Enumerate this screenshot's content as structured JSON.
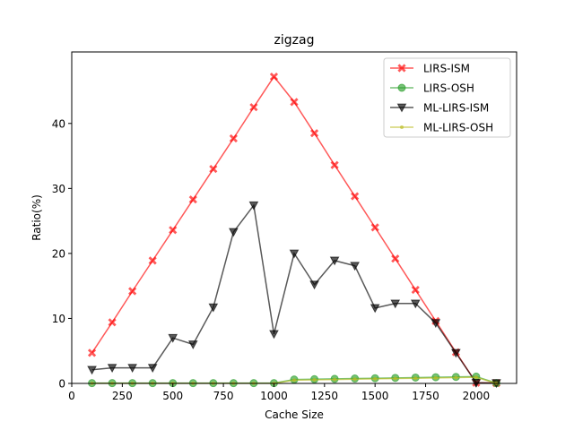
{
  "chart_data": {
    "type": "line",
    "title": "zigzag",
    "xlabel": "Cache Size",
    "ylabel": "Ratio(%)",
    "xlim": [
      0,
      2200
    ],
    "ylim": [
      0,
      51
    ],
    "xticks": [
      0,
      250,
      500,
      750,
      1000,
      1250,
      1500,
      1750,
      2000
    ],
    "yticks": [
      0,
      10,
      20,
      30,
      40
    ],
    "x": [
      100,
      200,
      300,
      400,
      500,
      600,
      700,
      800,
      900,
      1000,
      1100,
      1200,
      1300,
      1400,
      1500,
      1600,
      1700,
      1800,
      1900,
      2000,
      2100
    ],
    "legend_position": "top-right",
    "series": [
      {
        "name": "LIRS-ISM",
        "color": "#ff0000",
        "marker": "x",
        "values": [
          4.7,
          9.4,
          14.2,
          18.9,
          23.6,
          28.3,
          33.0,
          37.7,
          42.5,
          47.2,
          43.3,
          38.5,
          33.6,
          28.8,
          24.0,
          19.2,
          14.4,
          9.6,
          4.8,
          0.1,
          0.05
        ]
      },
      {
        "name": "LIRS-OSH",
        "color": "#2ca02c",
        "marker": "o",
        "values": [
          0.05,
          0.05,
          0.05,
          0.05,
          0.05,
          0.05,
          0.05,
          0.05,
          0.05,
          0.05,
          0.6,
          0.65,
          0.7,
          0.75,
          0.8,
          0.85,
          0.9,
          0.95,
          1.0,
          1.05,
          0.05
        ]
      },
      {
        "name": "ML-LIRS-ISM",
        "color": "#000000",
        "marker": "v",
        "values": [
          2.1,
          2.4,
          2.4,
          2.4,
          7.0,
          6.0,
          11.7,
          23.3,
          27.4,
          7.6,
          20.0,
          15.2,
          18.9,
          18.1,
          11.6,
          12.3,
          12.3,
          9.3,
          4.7,
          0.1,
          0.05
        ]
      },
      {
        "name": "ML-LIRS-OSH",
        "color": "#bcbd22",
        "marker": ".",
        "values": [
          0.02,
          0.02,
          0.02,
          0.02,
          0.02,
          0.02,
          0.02,
          0.02,
          0.02,
          0.02,
          0.5,
          0.55,
          0.6,
          0.65,
          0.7,
          0.75,
          0.8,
          0.85,
          0.9,
          0.95,
          0.02
        ]
      }
    ]
  }
}
